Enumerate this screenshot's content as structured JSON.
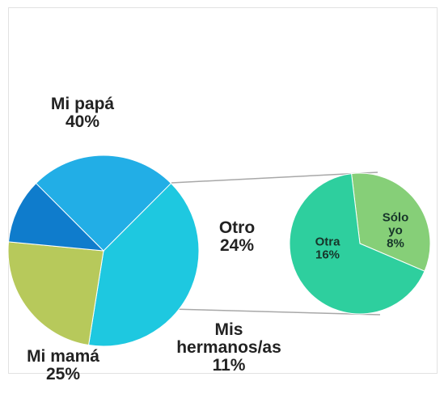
{
  "chart_data": {
    "type": "pie_of_pie",
    "categories": [
      "Mi papá",
      "Otro",
      "Mis hermanos/as",
      "Mi mamá"
    ],
    "values": [
      40,
      24,
      11,
      25
    ],
    "value_labels": [
      "40%",
      "24%",
      "11%",
      "25%"
    ],
    "colors": [
      "#1ec8e0",
      "#b7c95b",
      "#0f7ccc",
      "#22aee6"
    ],
    "secondary": {
      "categories": [
        "Sólo yo",
        "Otra"
      ],
      "values": [
        8,
        16
      ],
      "value_labels": [
        "8%",
        "16%"
      ],
      "colors": [
        "#86cf78",
        "#2ecf9e"
      ]
    }
  }
}
